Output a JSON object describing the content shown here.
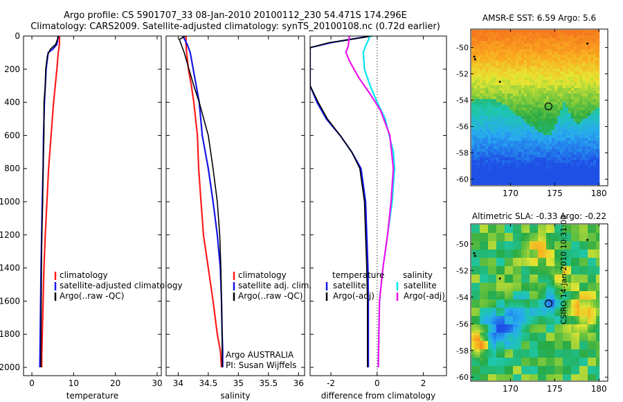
{
  "header": {
    "line1": "Argo profile: CS 5901707_33 08-Jan-2010 20100112_230 54.471S 174.296E",
    "line2": "Climatology: CARS2009. Satellite-adjusted climatology: synTS_20100108.nc (0.72d earlier)"
  },
  "credit": "CSIRO 14-Jan-2010 10:31:00",
  "colors": {
    "red": "#ff1a1a",
    "blue": "#1414e6",
    "black": "#000000",
    "cyan": "#00e5ee",
    "magenta": "#ee11ee"
  },
  "chart_data": [
    {
      "type": "line",
      "id": "temperature",
      "xlabel": "temperature",
      "ylabel": "",
      "xlim": [
        -2,
        31
      ],
      "ylim": [
        2050,
        0
      ],
      "xticks": [
        "0",
        "10",
        "20",
        "30"
      ],
      "yticks": [
        "0",
        "200",
        "400",
        "600",
        "800",
        "1000",
        "1200",
        "1400",
        "1600",
        "1800",
        "2000"
      ],
      "legend": [
        "climatology",
        "satellite-adjusted climatology",
        "Argo(..raw -QC)"
      ],
      "series": [
        {
          "name": "climatology",
          "color": "red",
          "x": [
            6.6,
            6.6,
            6.3,
            6.0,
            5.2,
            4.6,
            4.0,
            3.6,
            3.2,
            2.9,
            2.7,
            2.6,
            2.5,
            2.4,
            2.35
          ],
          "y": [
            0,
            50,
            100,
            200,
            400,
            600,
            800,
            1000,
            1200,
            1400,
            1600,
            1700,
            1800,
            1900,
            2000
          ]
        },
        {
          "name": "satellite-adjusted climatology",
          "color": "blue",
          "x": [
            6.3,
            6.0,
            5.0,
            3.9,
            3.4,
            3.0,
            2.8,
            2.7,
            2.5,
            2.35,
            2.2,
            2.1,
            2.0,
            1.95,
            1.9
          ],
          "y": [
            0,
            50,
            80,
            100,
            200,
            400,
            600,
            800,
            1000,
            1200,
            1400,
            1600,
            1800,
            1900,
            2000
          ]
        },
        {
          "name": "Argo(..raw -QC)",
          "color": "black",
          "x": [
            6.4,
            5.7,
            4.4,
            3.7,
            3.3,
            3.2,
            2.9,
            2.9,
            2.7,
            2.6,
            2.4,
            2.3,
            2.25,
            2.2,
            2.15
          ],
          "y": [
            0,
            50,
            80,
            120,
            200,
            300,
            400,
            600,
            800,
            1000,
            1200,
            1400,
            1600,
            1800,
            2000
          ]
        }
      ]
    },
    {
      "type": "line",
      "id": "salinity",
      "xlabel": "salinity",
      "xlim": [
        33.8,
        36.1
      ],
      "ylim": [
        2050,
        0
      ],
      "xticks": [
        "34",
        "34.5",
        "35",
        "35.5",
        "36"
      ],
      "legend": [
        "climatology",
        "satellite adj. clim.",
        "Argo(..raw -QC)"
      ],
      "annotations": [
        "Argo AUSTRALIA",
        "PI: Susan Wijffels"
      ],
      "series": [
        {
          "name": "climatology",
          "color": "red",
          "x": [
            34.13,
            34.13,
            34.14,
            34.17,
            34.22,
            34.26,
            34.32,
            34.34,
            34.38,
            34.42,
            34.5,
            34.58,
            34.65,
            34.7,
            34.72
          ],
          "y": [
            0,
            50,
            100,
            200,
            300,
            400,
            600,
            800,
            1000,
            1200,
            1400,
            1600,
            1800,
            1900,
            2000
          ]
        },
        {
          "name": "satellite adj. clim.",
          "color": "blue",
          "x": [
            34.08,
            34.15,
            34.2,
            34.25,
            34.3,
            34.35,
            34.4,
            34.5,
            34.58,
            34.65,
            34.7,
            34.72,
            34.73,
            34.74,
            34.74
          ],
          "y": [
            0,
            50,
            100,
            200,
            300,
            400,
            600,
            800,
            1000,
            1200,
            1400,
            1600,
            1800,
            1900,
            2000
          ]
        },
        {
          "name": "Argo(..raw -QC)",
          "color": "black",
          "x": [
            34.12,
            34.02,
            34.05,
            34.1,
            34.18,
            34.26,
            34.35,
            34.5,
            34.58,
            34.65,
            34.69,
            34.71,
            34.72,
            34.73,
            34.73
          ],
          "y": [
            0,
            20,
            50,
            100,
            200,
            300,
            400,
            600,
            800,
            1000,
            1200,
            1400,
            1600,
            1800,
            2000
          ]
        }
      ]
    },
    {
      "type": "line",
      "id": "difference",
      "xlabel": "difference from climatology",
      "xlim": [
        -2.9,
        3.0
      ],
      "ylim": [
        2050,
        0
      ],
      "xticks": [
        "-2",
        "0",
        "2"
      ],
      "legend_left": [
        "temperature",
        "satellite",
        "Argo(-adj)"
      ],
      "legend_right": [
        "salinity",
        "satellite",
        "Argo(-adj)"
      ],
      "series": [
        {
          "name": "temperature satellite",
          "color": "blue",
          "x": [
            -0.3,
            -2.0,
            -2.9,
            -2.9,
            -2.6,
            -2.2,
            -1.6,
            -1.1,
            -0.7,
            -0.5,
            -0.45,
            -0.4,
            -0.38,
            -0.38
          ],
          "y": [
            0,
            40,
            70,
            300,
            400,
            500,
            600,
            700,
            800,
            1000,
            1200,
            1400,
            1600,
            2000
          ]
        },
        {
          "name": "temperature Argo(-adj)",
          "color": "black",
          "x": [
            -0.2,
            -2.1,
            -2.9,
            -2.9,
            -2.55,
            -2.15,
            -1.6,
            -1.1,
            -0.75,
            -0.55,
            -0.5,
            -0.45,
            -0.42,
            -0.42
          ],
          "y": [
            0,
            40,
            70,
            300,
            400,
            500,
            600,
            700,
            800,
            1000,
            1200,
            1400,
            1600,
            2000
          ]
        },
        {
          "name": "salinity satellite",
          "color": "cyan",
          "x": [
            -0.3,
            -0.5,
            -0.6,
            -0.55,
            -0.3,
            0,
            0.35,
            0.7,
            0.75,
            0.65,
            0.45,
            0.25,
            0.1,
            0.05
          ],
          "y": [
            0,
            60,
            100,
            200,
            300,
            400,
            500,
            700,
            800,
            1000,
            1200,
            1400,
            1600,
            2000
          ]
        },
        {
          "name": "salinity Argo(-adj)",
          "color": "magenta",
          "x": [
            -1.2,
            -1.25,
            -1.35,
            -1.2,
            -0.8,
            -0.3,
            0.15,
            0.55,
            0.7,
            0.6,
            0.45,
            0.25,
            0.1,
            0.05
          ],
          "y": [
            0,
            60,
            100,
            150,
            250,
            350,
            450,
            600,
            800,
            1000,
            1200,
            1400,
            1600,
            2000
          ]
        }
      ]
    },
    {
      "type": "heatmap",
      "id": "sst",
      "title": "AMSR-E SST: 6.59 Argo: 5.6",
      "xlim": [
        165.5,
        181
      ],
      "ylim": [
        -60.5,
        -48.6
      ],
      "xticks": [
        170,
        175,
        180
      ],
      "yticks": [
        -50,
        -52,
        -54,
        -56,
        -58,
        -60
      ],
      "float_position": {
        "lon": 174.3,
        "lat": -54.47
      },
      "marks": [
        {
          "lon": 165.9,
          "lat": -50.7
        },
        {
          "lon": 166.0,
          "lat": -50.9
        },
        {
          "lon": 168.8,
          "lat": -52.6
        },
        {
          "lon": 178.7,
          "lat": -49.7
        }
      ]
    },
    {
      "type": "heatmap",
      "id": "sla",
      "title": "Altimetric SLA: -0.33 Argo: -0.22",
      "xlim": [
        165.5,
        181
      ],
      "ylim": [
        -60.3,
        -48.5
      ],
      "xticks": [
        170,
        175,
        180
      ],
      "yticks": [
        -50,
        -52,
        -54,
        -56,
        -58,
        -60
      ],
      "float_position": {
        "lon": 174.3,
        "lat": -54.47
      },
      "marks": [
        {
          "lon": 165.9,
          "lat": -50.7
        },
        {
          "lon": 166.0,
          "lat": -50.9
        },
        {
          "lon": 168.8,
          "lat": -52.6
        },
        {
          "lon": 178.7,
          "lat": -49.7
        }
      ]
    }
  ]
}
